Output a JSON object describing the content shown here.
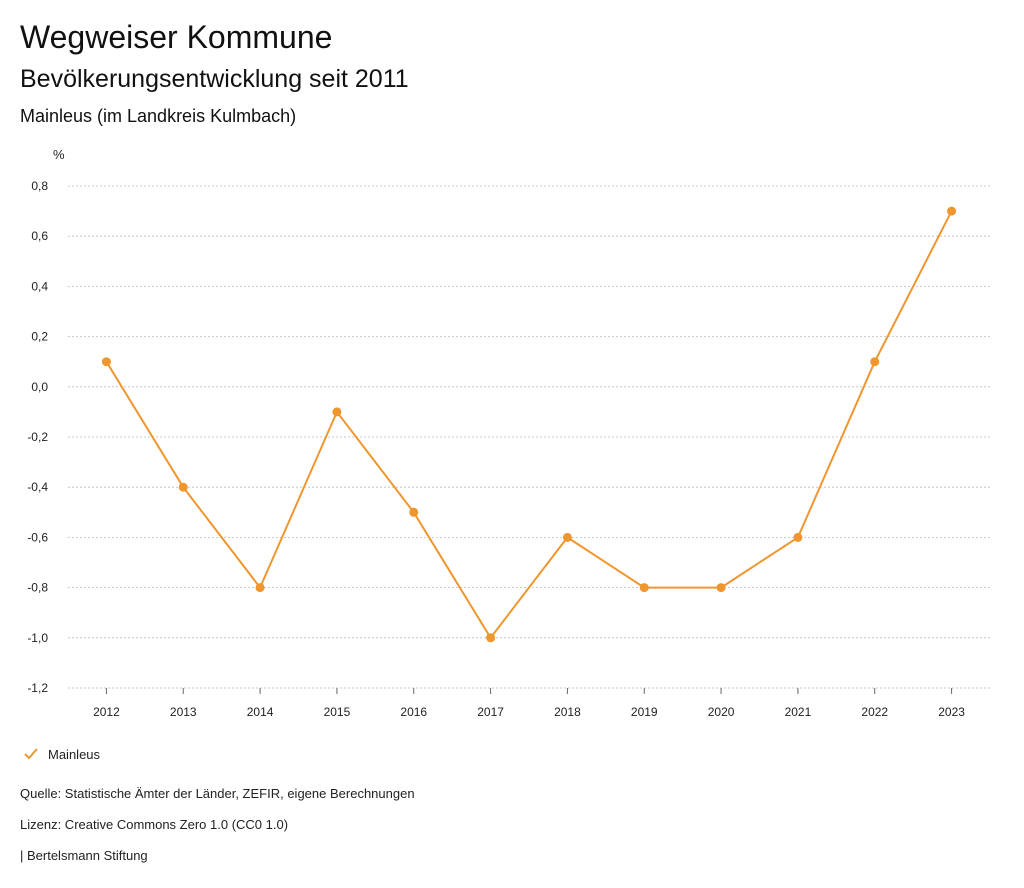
{
  "header": {
    "title": "Wegweiser Kommune",
    "subtitle": "Bevölkerungsentwicklung seit 2011",
    "region": "Mainleus (im Landkreis Kulmbach)"
  },
  "legend": {
    "label": "Mainleus",
    "icon": "check-icon"
  },
  "footer": {
    "source": "Quelle: Statistische Ämter der Länder, ZEFIR, eigene Berechnungen",
    "license": "Lizenz: Creative Commons Zero 1.0 (CC0 1.0)",
    "brand": "| Bertelsmann Stiftung"
  },
  "colors": {
    "series": "#f0962e",
    "grid": "#bbbbbb",
    "axis_text": "#222222"
  },
  "chart_data": {
    "type": "line",
    "title": "Bevölkerungsentwicklung seit 2011",
    "ylabel": "%",
    "xlabel": "",
    "categories": [
      "2012",
      "2013",
      "2014",
      "2015",
      "2016",
      "2017",
      "2018",
      "2019",
      "2020",
      "2021",
      "2022",
      "2023"
    ],
    "series": [
      {
        "name": "Mainleus",
        "values": [
          0.1,
          -0.4,
          -0.8,
          -0.1,
          -0.5,
          -1.0,
          -0.6,
          -0.8,
          -0.8,
          -0.6,
          0.1,
          0.7
        ]
      }
    ],
    "ylim": [
      -1.2,
      0.8
    ],
    "yticks": [
      0.8,
      0.6,
      0.4,
      0.2,
      0.0,
      -0.2,
      -0.4,
      -0.6,
      -0.8,
      -1.0,
      -1.2
    ],
    "ytick_labels": [
      "0,8",
      "0,6",
      "0,4",
      "0,2",
      "0,0",
      "-0,2",
      "-0,4",
      "-0,6",
      "-0,8",
      "-1,0",
      "-1,2"
    ],
    "grid": true,
    "legend_position": "bottom-left"
  }
}
